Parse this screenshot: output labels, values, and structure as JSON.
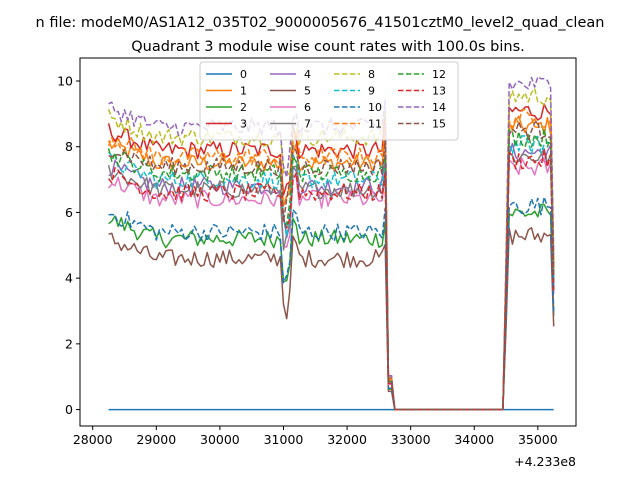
{
  "chart_data": {
    "type": "line",
    "suptitle": "n file: modeM0/AS1A12_035T02_9000005676_41501cztM0_level2_quad_clean",
    "title": "Quadrant 3 module wise count rates with 100.0s bins.",
    "xlabel": "",
    "ylabel": "",
    "x_offset_label": "+4.233e8",
    "xlim": [
      27800,
      35600
    ],
    "ylim": [
      -0.5,
      10.7
    ],
    "x_ticks": [
      28000,
      29000,
      30000,
      31000,
      32000,
      33000,
      34000,
      35000
    ],
    "x_tick_labels": [
      "28000",
      "29000",
      "30000",
      "31000",
      "32000",
      "33000",
      "34000",
      "35000"
    ],
    "y_ticks": [
      0,
      2,
      4,
      6,
      8,
      10
    ],
    "y_tick_labels": [
      "0",
      "2",
      "4",
      "6",
      "8",
      "10"
    ],
    "grid": false,
    "legend_placement": "top-center",
    "legend_columns": 4,
    "gti_1": [
      28250,
      32750
    ],
    "gti_2": [
      34450,
      35250
    ],
    "bin_size": 100,
    "series": [
      {
        "name": "0",
        "color": "#1f77b4",
        "dash": "solid",
        "level": 0.0,
        "values_note": ""
      },
      {
        "name": "1",
        "color": "#ff7f0e",
        "dash": "solid",
        "level": 7.5
      },
      {
        "name": "2",
        "color": "#2ca02c",
        "dash": "solid",
        "level": 5.2
      },
      {
        "name": "3",
        "color": "#d62728",
        "dash": "solid",
        "level": 7.9
      },
      {
        "name": "4",
        "color": "#9467bd",
        "dash": "solid",
        "level": 6.8
      },
      {
        "name": "5",
        "color": "#8c564b",
        "dash": "solid",
        "level": 4.6
      },
      {
        "name": "6",
        "color": "#e377c2",
        "dash": "solid",
        "level": 6.4
      },
      {
        "name": "7",
        "color": "#7f7f7f",
        "dash": "solid",
        "level": 6.7
      },
      {
        "name": "8",
        "color": "#bcbd22",
        "dash": "dashed",
        "level": 8.3
      },
      {
        "name": "9",
        "color": "#17becf",
        "dash": "dashed",
        "level": 7.0
      },
      {
        "name": "10",
        "color": "#1f77b4",
        "dash": "dashed",
        "level": 5.4
      },
      {
        "name": "11",
        "color": "#ff7f0e",
        "dash": "dashed",
        "level": 7.7
      },
      {
        "name": "12",
        "color": "#2ca02c",
        "dash": "dashed",
        "level": 7.2
      },
      {
        "name": "13",
        "color": "#d62728",
        "dash": "dashed",
        "level": 6.6
      },
      {
        "name": "14",
        "color": "#9467bd",
        "dash": "dashed",
        "level": 8.6
      },
      {
        "name": "15",
        "color": "#8c564b",
        "dash": "dashed",
        "level": 7.4
      }
    ]
  }
}
